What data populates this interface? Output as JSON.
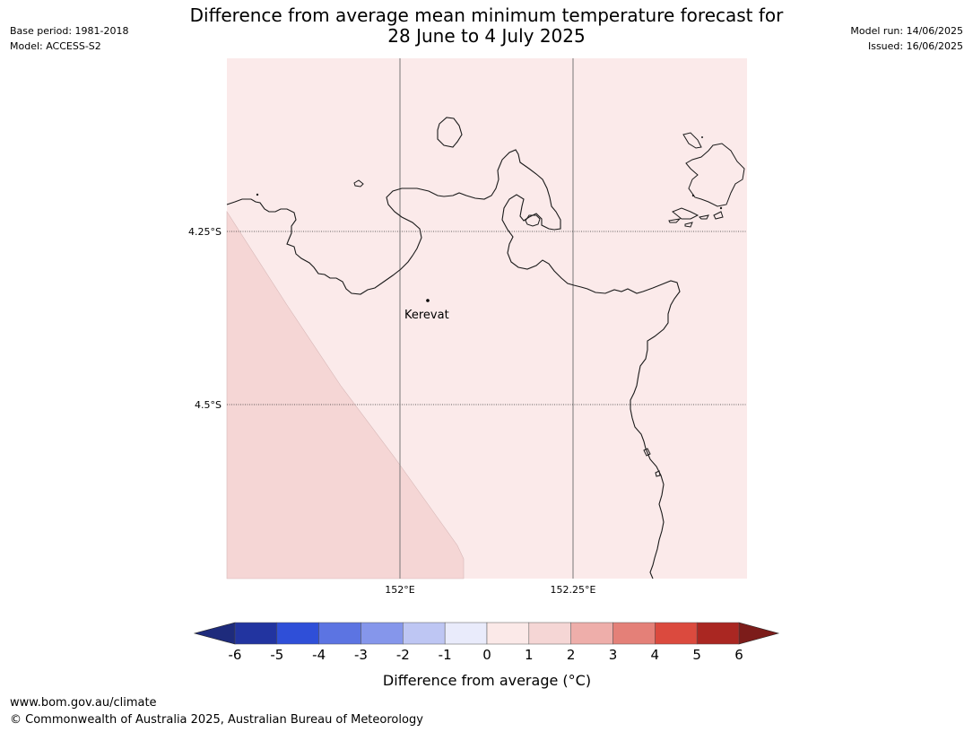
{
  "header": {
    "title_line1": "Difference from average mean minimum temperature forecast for",
    "title_line2": "28 June to 4 July 2025",
    "base_period": "Base period: 1981-2018",
    "model": "Model: ACCESS-S2",
    "model_run": "Model run: 14/06/2025",
    "issued": "Issued: 16/06/2025"
  },
  "map": {
    "lat_labels": [
      "4.25°S",
      "4.5°S"
    ],
    "lon_labels": [
      "152°E",
      "152.25°E"
    ],
    "place": "Kerevat",
    "colors": {
      "background": "#fbeaea",
      "anomaly_1_2": "#f5d6d5",
      "coast": "#1a1a1a"
    }
  },
  "legend": {
    "ticks": [
      "-6",
      "-5",
      "-4",
      "-3",
      "-2",
      "-1",
      "0",
      "1",
      "2",
      "3",
      "4",
      "5",
      "6"
    ],
    "colors": [
      "#2234a0",
      "#2f4fd8",
      "#5c74e2",
      "#8596eb",
      "#bec6f3",
      "#e9ebfb",
      "#fbe9e8",
      "#f5d6d5",
      "#eeaeaa",
      "#e48078",
      "#db4a3e",
      "#aa2722"
    ],
    "under_color": "#1e2b7c",
    "over_color": "#7c1c1a",
    "label": "Difference from average (°C)"
  },
  "footer": {
    "url": "www.bom.gov.au/climate",
    "copyright": "© Commonwealth of Australia 2025, Australian Bureau of Meteorology"
  }
}
